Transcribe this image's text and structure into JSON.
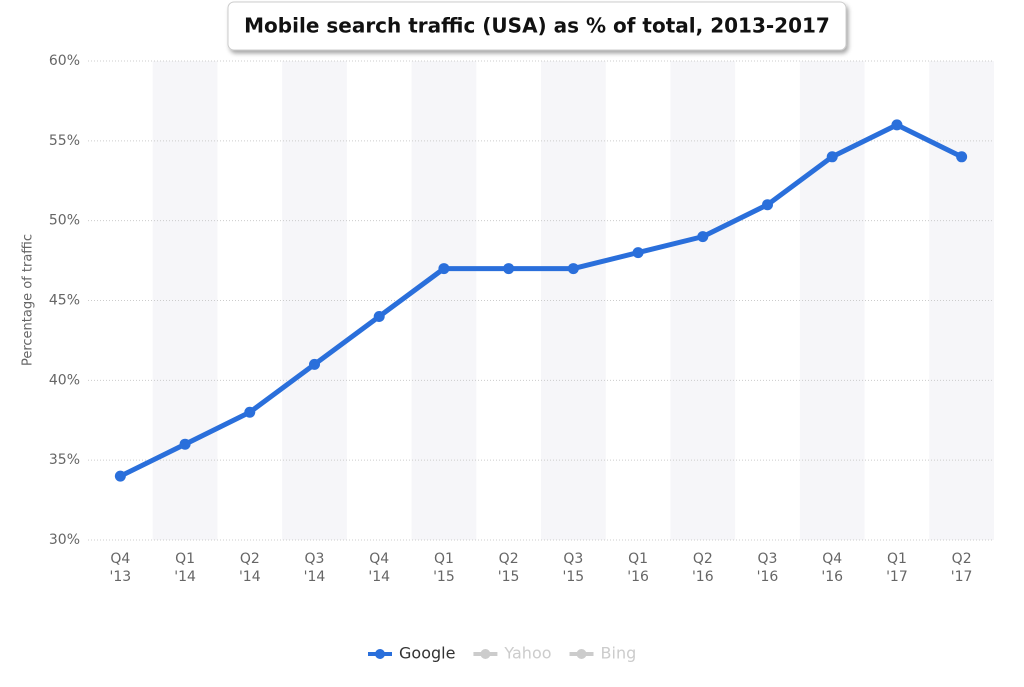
{
  "chart_data": {
    "type": "line",
    "title": "Mobile search traffic (USA) as % of total, 2013-2017",
    "y_label": "Percentage of traffic",
    "categories": [
      [
        "Q4",
        "'13"
      ],
      [
        "Q1",
        "'14"
      ],
      [
        "Q2",
        "'14"
      ],
      [
        "Q3",
        "'14"
      ],
      [
        "Q4",
        "'14"
      ],
      [
        "Q1",
        "'15"
      ],
      [
        "Q2",
        "'15"
      ],
      [
        "Q3",
        "'15"
      ],
      [
        "Q1",
        "'16"
      ],
      [
        "Q2",
        "'16"
      ],
      [
        "Q3",
        "'16"
      ],
      [
        "Q4",
        "'16"
      ],
      [
        "Q1",
        "'17"
      ],
      [
        "Q2",
        "'17"
      ]
    ],
    "series": [
      {
        "name": "Google",
        "color": "#2a6fdb",
        "values": [
          34,
          36,
          38,
          41,
          44,
          47,
          47,
          47,
          48,
          49,
          51,
          54,
          56,
          54
        ]
      }
    ],
    "hidden_series": [
      {
        "name": "Yahoo",
        "color": "#cccccc"
      },
      {
        "name": "Bing",
        "color": "#cccccc"
      }
    ],
    "ylim": [
      30,
      60
    ],
    "yticks": [
      {
        "value": 30,
        "label": "30%"
      },
      {
        "value": 35,
        "label": "35%"
      },
      {
        "value": 40,
        "label": "40%"
      },
      {
        "value": 45,
        "label": "45%"
      },
      {
        "value": 50,
        "label": "50%"
      },
      {
        "value": 55,
        "label": "55%"
      },
      {
        "value": 60,
        "label": "60%"
      }
    ],
    "grid": true
  }
}
